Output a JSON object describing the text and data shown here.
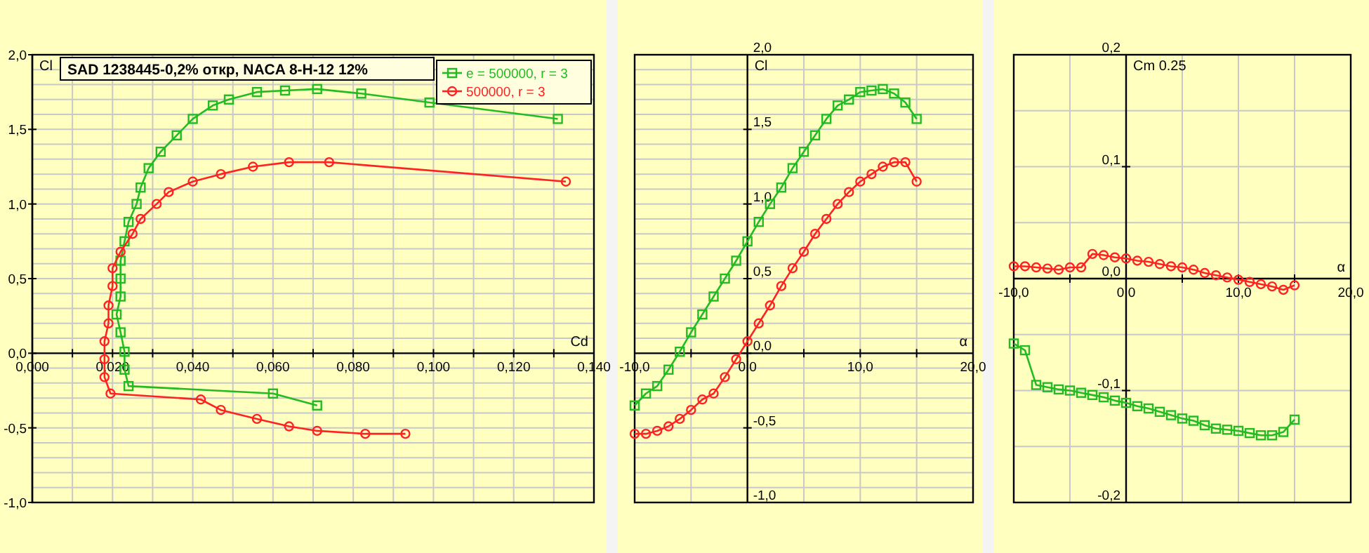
{
  "chart_data": [
    {
      "type": "line",
      "title": "SAD 1238445-0,2% откр, NACA 8-H-12   12%",
      "xlabel": "Cd",
      "ylabel": "Cl",
      "legend": "top right",
      "grid": true,
      "xlim": [
        0,
        0.14
      ],
      "xticks": [
        {
          "value": 0,
          "label": "0,000"
        },
        {
          "value": 0.01,
          "label": null
        },
        {
          "value": 0.02,
          "label": "0,020"
        },
        {
          "value": 0.03,
          "label": null
        },
        {
          "value": 0.04,
          "label": "0,040"
        },
        {
          "value": 0.05,
          "label": null
        },
        {
          "value": 0.06,
          "label": "0,060"
        },
        {
          "value": 0.07,
          "label": null
        },
        {
          "value": 0.08,
          "label": "0,080"
        },
        {
          "value": 0.09,
          "label": null
        },
        {
          "value": 0.1,
          "label": "0,100"
        },
        {
          "value": 0.11,
          "label": null
        },
        {
          "value": 0.12,
          "label": "0,120"
        },
        {
          "value": 0.13,
          "label": null
        },
        {
          "value": 0.14,
          "label": "0,140"
        }
      ],
      "ylim": [
        -1,
        2
      ],
      "yticks": [
        {
          "value": -1,
          "label": "-1,0"
        },
        {
          "value": -0.9,
          "label": null
        },
        {
          "value": -0.8,
          "label": null
        },
        {
          "value": -0.7,
          "label": null
        },
        {
          "value": -0.6,
          "label": null
        },
        {
          "value": -0.5,
          "label": "-0,5"
        },
        {
          "value": -0.4,
          "label": null
        },
        {
          "value": -0.3,
          "label": null
        },
        {
          "value": -0.2,
          "label": null
        },
        {
          "value": -0.1,
          "label": null
        },
        {
          "value": 0,
          "label": "0,0"
        },
        {
          "value": 0.1,
          "label": null
        },
        {
          "value": 0.2,
          "label": null
        },
        {
          "value": 0.3,
          "label": null
        },
        {
          "value": 0.4,
          "label": null
        },
        {
          "value": 0.5,
          "label": "0,5"
        },
        {
          "value": 0.6,
          "label": null
        },
        {
          "value": 0.7,
          "label": null
        },
        {
          "value": 0.8,
          "label": null
        },
        {
          "value": 0.9,
          "label": null
        },
        {
          "value": 1,
          "label": "1,0"
        },
        {
          "value": 1.1,
          "label": null
        },
        {
          "value": 1.2,
          "label": null
        },
        {
          "value": 1.3,
          "label": null
        },
        {
          "value": 1.4,
          "label": null
        },
        {
          "value": 1.5,
          "label": "1,5"
        },
        {
          "value": 1.6,
          "label": null
        },
        {
          "value": 1.7,
          "label": null
        },
        {
          "value": 1.8,
          "label": null
        },
        {
          "value": 1.9,
          "label": null
        },
        {
          "value": 2,
          "label": "2,0"
        }
      ],
      "series": [
        {
          "name": "e = 500000, r = 3",
          "color": "#22bb22",
          "marker": "square",
          "x": [
            0.071,
            0.06,
            0.024,
            0.023,
            0.023,
            0.022,
            0.021,
            0.022,
            0.022,
            0.022,
            0.023,
            0.024,
            0.026,
            0.027,
            0.029,
            0.032,
            0.036,
            0.04,
            0.045,
            0.049,
            0.056,
            0.063,
            0.071,
            0.082,
            0.099,
            0.131
          ],
          "values": [
            -0.35,
            -0.27,
            -0.22,
            -0.11,
            0.01,
            0.14,
            0.26,
            0.38,
            0.5,
            0.62,
            0.75,
            0.88,
            1.0,
            1.11,
            1.24,
            1.35,
            1.46,
            1.57,
            1.66,
            1.7,
            1.75,
            1.76,
            1.77,
            1.74,
            1.68,
            1.57
          ]
        },
        {
          "name": "500000, r = 3",
          "color": "#ff2222",
          "marker": "circle",
          "x": [
            0.093,
            0.083,
            0.071,
            0.064,
            0.056,
            0.047,
            0.042,
            0.0195,
            0.018,
            0.018,
            0.018,
            0.019,
            0.019,
            0.02,
            0.02,
            0.022,
            0.025,
            0.027,
            0.031,
            0.034,
            0.04,
            0.047,
            0.055,
            0.064,
            0.074,
            0.133
          ],
          "values": [
            -0.54,
            -0.54,
            -0.52,
            -0.49,
            -0.44,
            -0.38,
            -0.31,
            -0.27,
            -0.16,
            -0.04,
            0.08,
            0.2,
            0.32,
            0.45,
            0.57,
            0.68,
            0.8,
            0.9,
            1.0,
            1.08,
            1.15,
            1.2,
            1.25,
            1.28,
            1.28,
            1.15
          ]
        }
      ]
    },
    {
      "type": "line",
      "xlabel": "α",
      "ylabel": "Cl",
      "grid": true,
      "x": [
        -10,
        -9,
        -8,
        -7,
        -6,
        -5,
        -4,
        -3,
        -2,
        -1,
        0,
        1,
        2,
        3,
        4,
        5,
        6,
        7,
        8,
        9,
        10,
        11,
        12,
        13,
        14,
        15
      ],
      "xlim": [
        -10,
        20
      ],
      "xticks": [
        {
          "value": -10,
          "label": "-10,0"
        },
        {
          "value": -5,
          "label": null
        },
        {
          "value": 0,
          "label": "0,0"
        },
        {
          "value": 5,
          "label": null
        },
        {
          "value": 10,
          "label": "10,0"
        },
        {
          "value": 15,
          "label": null
        },
        {
          "value": 20,
          "label": "20,0"
        }
      ],
      "ylim": [
        -1,
        2
      ],
      "yticks": [
        {
          "value": -1,
          "label": "-1,0"
        },
        {
          "value": -0.9,
          "label": null
        },
        {
          "value": -0.8,
          "label": null
        },
        {
          "value": -0.7,
          "label": null
        },
        {
          "value": -0.6,
          "label": null
        },
        {
          "value": -0.5,
          "label": "-0,5"
        },
        {
          "value": -0.4,
          "label": null
        },
        {
          "value": -0.3,
          "label": null
        },
        {
          "value": -0.2,
          "label": null
        },
        {
          "value": -0.1,
          "label": null
        },
        {
          "value": 0,
          "label": "0,0"
        },
        {
          "value": 0.1,
          "label": null
        },
        {
          "value": 0.2,
          "label": null
        },
        {
          "value": 0.3,
          "label": null
        },
        {
          "value": 0.4,
          "label": null
        },
        {
          "value": 0.5,
          "label": "0,5"
        },
        {
          "value": 0.6,
          "label": null
        },
        {
          "value": 0.7,
          "label": null
        },
        {
          "value": 0.8,
          "label": null
        },
        {
          "value": 0.9,
          "label": null
        },
        {
          "value": 1,
          "label": "1,0"
        },
        {
          "value": 1.1,
          "label": null
        },
        {
          "value": 1.2,
          "label": null
        },
        {
          "value": 1.3,
          "label": null
        },
        {
          "value": 1.4,
          "label": null
        },
        {
          "value": 1.5,
          "label": "1,5"
        },
        {
          "value": 1.6,
          "label": null
        },
        {
          "value": 1.7,
          "label": null
        },
        {
          "value": 1.8,
          "label": null
        },
        {
          "value": 1.9,
          "label": null
        },
        {
          "value": 2,
          "label": "2,0"
        }
      ],
      "series": [
        {
          "color": "#22bb22",
          "marker": "square",
          "values": [
            -0.35,
            -0.27,
            -0.22,
            -0.11,
            0.01,
            0.14,
            0.26,
            0.38,
            0.5,
            0.62,
            0.75,
            0.88,
            1.0,
            1.11,
            1.24,
            1.35,
            1.46,
            1.57,
            1.66,
            1.7,
            1.75,
            1.76,
            1.77,
            1.74,
            1.68,
            1.57
          ]
        },
        {
          "color": "#ff2222",
          "marker": "circle",
          "values": [
            -0.54,
            -0.54,
            -0.52,
            -0.49,
            -0.44,
            -0.38,
            -0.31,
            -0.27,
            -0.16,
            -0.04,
            0.08,
            0.2,
            0.32,
            0.45,
            0.57,
            0.68,
            0.8,
            0.9,
            1.0,
            1.08,
            1.15,
            1.2,
            1.25,
            1.28,
            1.28,
            1.15
          ]
        }
      ]
    },
    {
      "type": "line",
      "xlabel": "α",
      "ylabel": "Cm 0.25",
      "grid": true,
      "x": [
        -10,
        -9,
        -8,
        -7,
        -6,
        -5,
        -4,
        -3,
        -2,
        -1,
        0,
        1,
        2,
        3,
        4,
        5,
        6,
        7,
        8,
        9,
        10,
        11,
        12,
        13,
        14,
        15
      ],
      "xlim": [
        -10,
        20
      ],
      "xticks": [
        {
          "value": -10,
          "label": "-10,0"
        },
        {
          "value": -5,
          "label": null
        },
        {
          "value": 0,
          "label": "0,0"
        },
        {
          "value": 5,
          "label": null
        },
        {
          "value": 10,
          "label": "10,0"
        },
        {
          "value": 15,
          "label": null
        },
        {
          "value": 20,
          "label": "20,0"
        }
      ],
      "ylim": [
        -0.2,
        0.2
      ],
      "yticks": [
        {
          "value": -0.2,
          "label": "-0,2"
        },
        {
          "value": -0.15,
          "label": null
        },
        {
          "value": -0.1,
          "label": "-0,1"
        },
        {
          "value": -0.05,
          "label": null
        },
        {
          "value": 0,
          "label": "0,0"
        },
        {
          "value": 0.05,
          "label": null
        },
        {
          "value": 0.1,
          "label": "0,1"
        },
        {
          "value": 0.15,
          "label": null
        },
        {
          "value": 0.2,
          "label": "0,2"
        }
      ],
      "series": [
        {
          "color": "#ff2222",
          "marker": "circle",
          "values": [
            0.011,
            0.011,
            0.01,
            0.009,
            0.008,
            0.01,
            0.01,
            0.022,
            0.021,
            0.019,
            0.018,
            0.016,
            0.015,
            0.013,
            0.011,
            0.01,
            0.008,
            0.005,
            0.003,
            0.001,
            -0.001,
            -0.003,
            -0.005,
            -0.007,
            -0.01,
            -0.006
          ]
        },
        {
          "color": "#22bb22",
          "marker": "square",
          "values": [
            -0.058,
            -0.064,
            -0.095,
            -0.097,
            -0.099,
            -0.1,
            -0.102,
            -0.104,
            -0.106,
            -0.109,
            -0.111,
            -0.114,
            -0.116,
            -0.119,
            -0.122,
            -0.125,
            -0.127,
            -0.131,
            -0.134,
            -0.135,
            -0.136,
            -0.138,
            -0.14,
            -0.14,
            -0.137,
            -0.126
          ]
        }
      ]
    }
  ]
}
